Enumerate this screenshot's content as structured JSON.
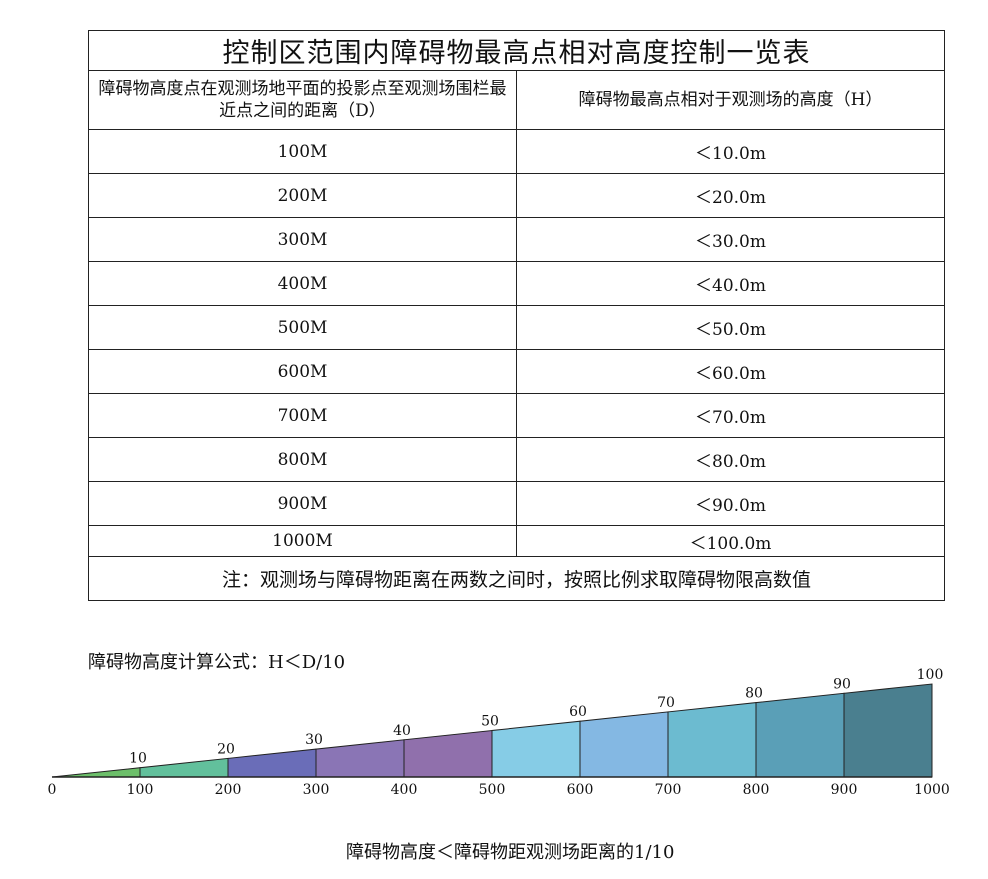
{
  "table": {
    "title": "控制区范围内障碍物最高点相对高度控制一览表",
    "header": {
      "distance": "障碍物高度点在观测场地平面的投影点至观测场围栏最近点之间的距离（D）",
      "height": "障碍物最高点相对于观测场的高度（H）"
    },
    "rows": [
      {
        "distance": "100M",
        "height": "＜10.0m"
      },
      {
        "distance": "200M",
        "height": "＜20.0m"
      },
      {
        "distance": "300M",
        "height": "＜30.0m"
      },
      {
        "distance": "400M",
        "height": "＜40.0m"
      },
      {
        "distance": "500M",
        "height": "＜50.0m"
      },
      {
        "distance": "600M",
        "height": "＜60.0m"
      },
      {
        "distance": "700M",
        "height": "＜70.0m"
      },
      {
        "distance": "800M",
        "height": "＜80.0m"
      },
      {
        "distance": "900M",
        "height": "＜90.0m"
      },
      {
        "distance": "1000M",
        "height": "＜100.0m"
      }
    ],
    "note": "注：观测场与障碍物距离在两数之间时，按照比例求取障碍物限高数值"
  },
  "formula": "障碍物高度计算公式：H＜D/10",
  "wedge": {
    "origin_label": "0",
    "segments": [
      {
        "distance": 100,
        "distance_label": "100",
        "height": 10,
        "height_label": "10",
        "color": "#6cbf6a"
      },
      {
        "distance": 200,
        "distance_label": "200",
        "height": 20,
        "height_label": "20",
        "color": "#62c09c"
      },
      {
        "distance": 300,
        "distance_label": "300",
        "height": 30,
        "height_label": "30",
        "color": "#6a6db8"
      },
      {
        "distance": 400,
        "distance_label": "400",
        "height": 40,
        "height_label": "40",
        "color": "#8a75b5"
      },
      {
        "distance": 500,
        "distance_label": "500",
        "height": 50,
        "height_label": "50",
        "color": "#9070ac"
      },
      {
        "distance": 600,
        "distance_label": "600",
        "height": 60,
        "height_label": "60",
        "color": "#86cce6"
      },
      {
        "distance": 700,
        "distance_label": "700",
        "height": 70,
        "height_label": "70",
        "color": "#84b8e3"
      },
      {
        "distance": 800,
        "distance_label": "800",
        "height": 80,
        "height_label": "80",
        "color": "#6cbbd0"
      },
      {
        "distance": 900,
        "distance_label": "900",
        "height": 90,
        "height_label": "90",
        "color": "#5a9fb7"
      },
      {
        "distance": 1000,
        "distance_label": "1000",
        "height": 100,
        "height_label": "100",
        "color": "#4a7f8f"
      }
    ]
  },
  "caption": "障碍物高度＜障碍物距观测场距离的1/10"
}
